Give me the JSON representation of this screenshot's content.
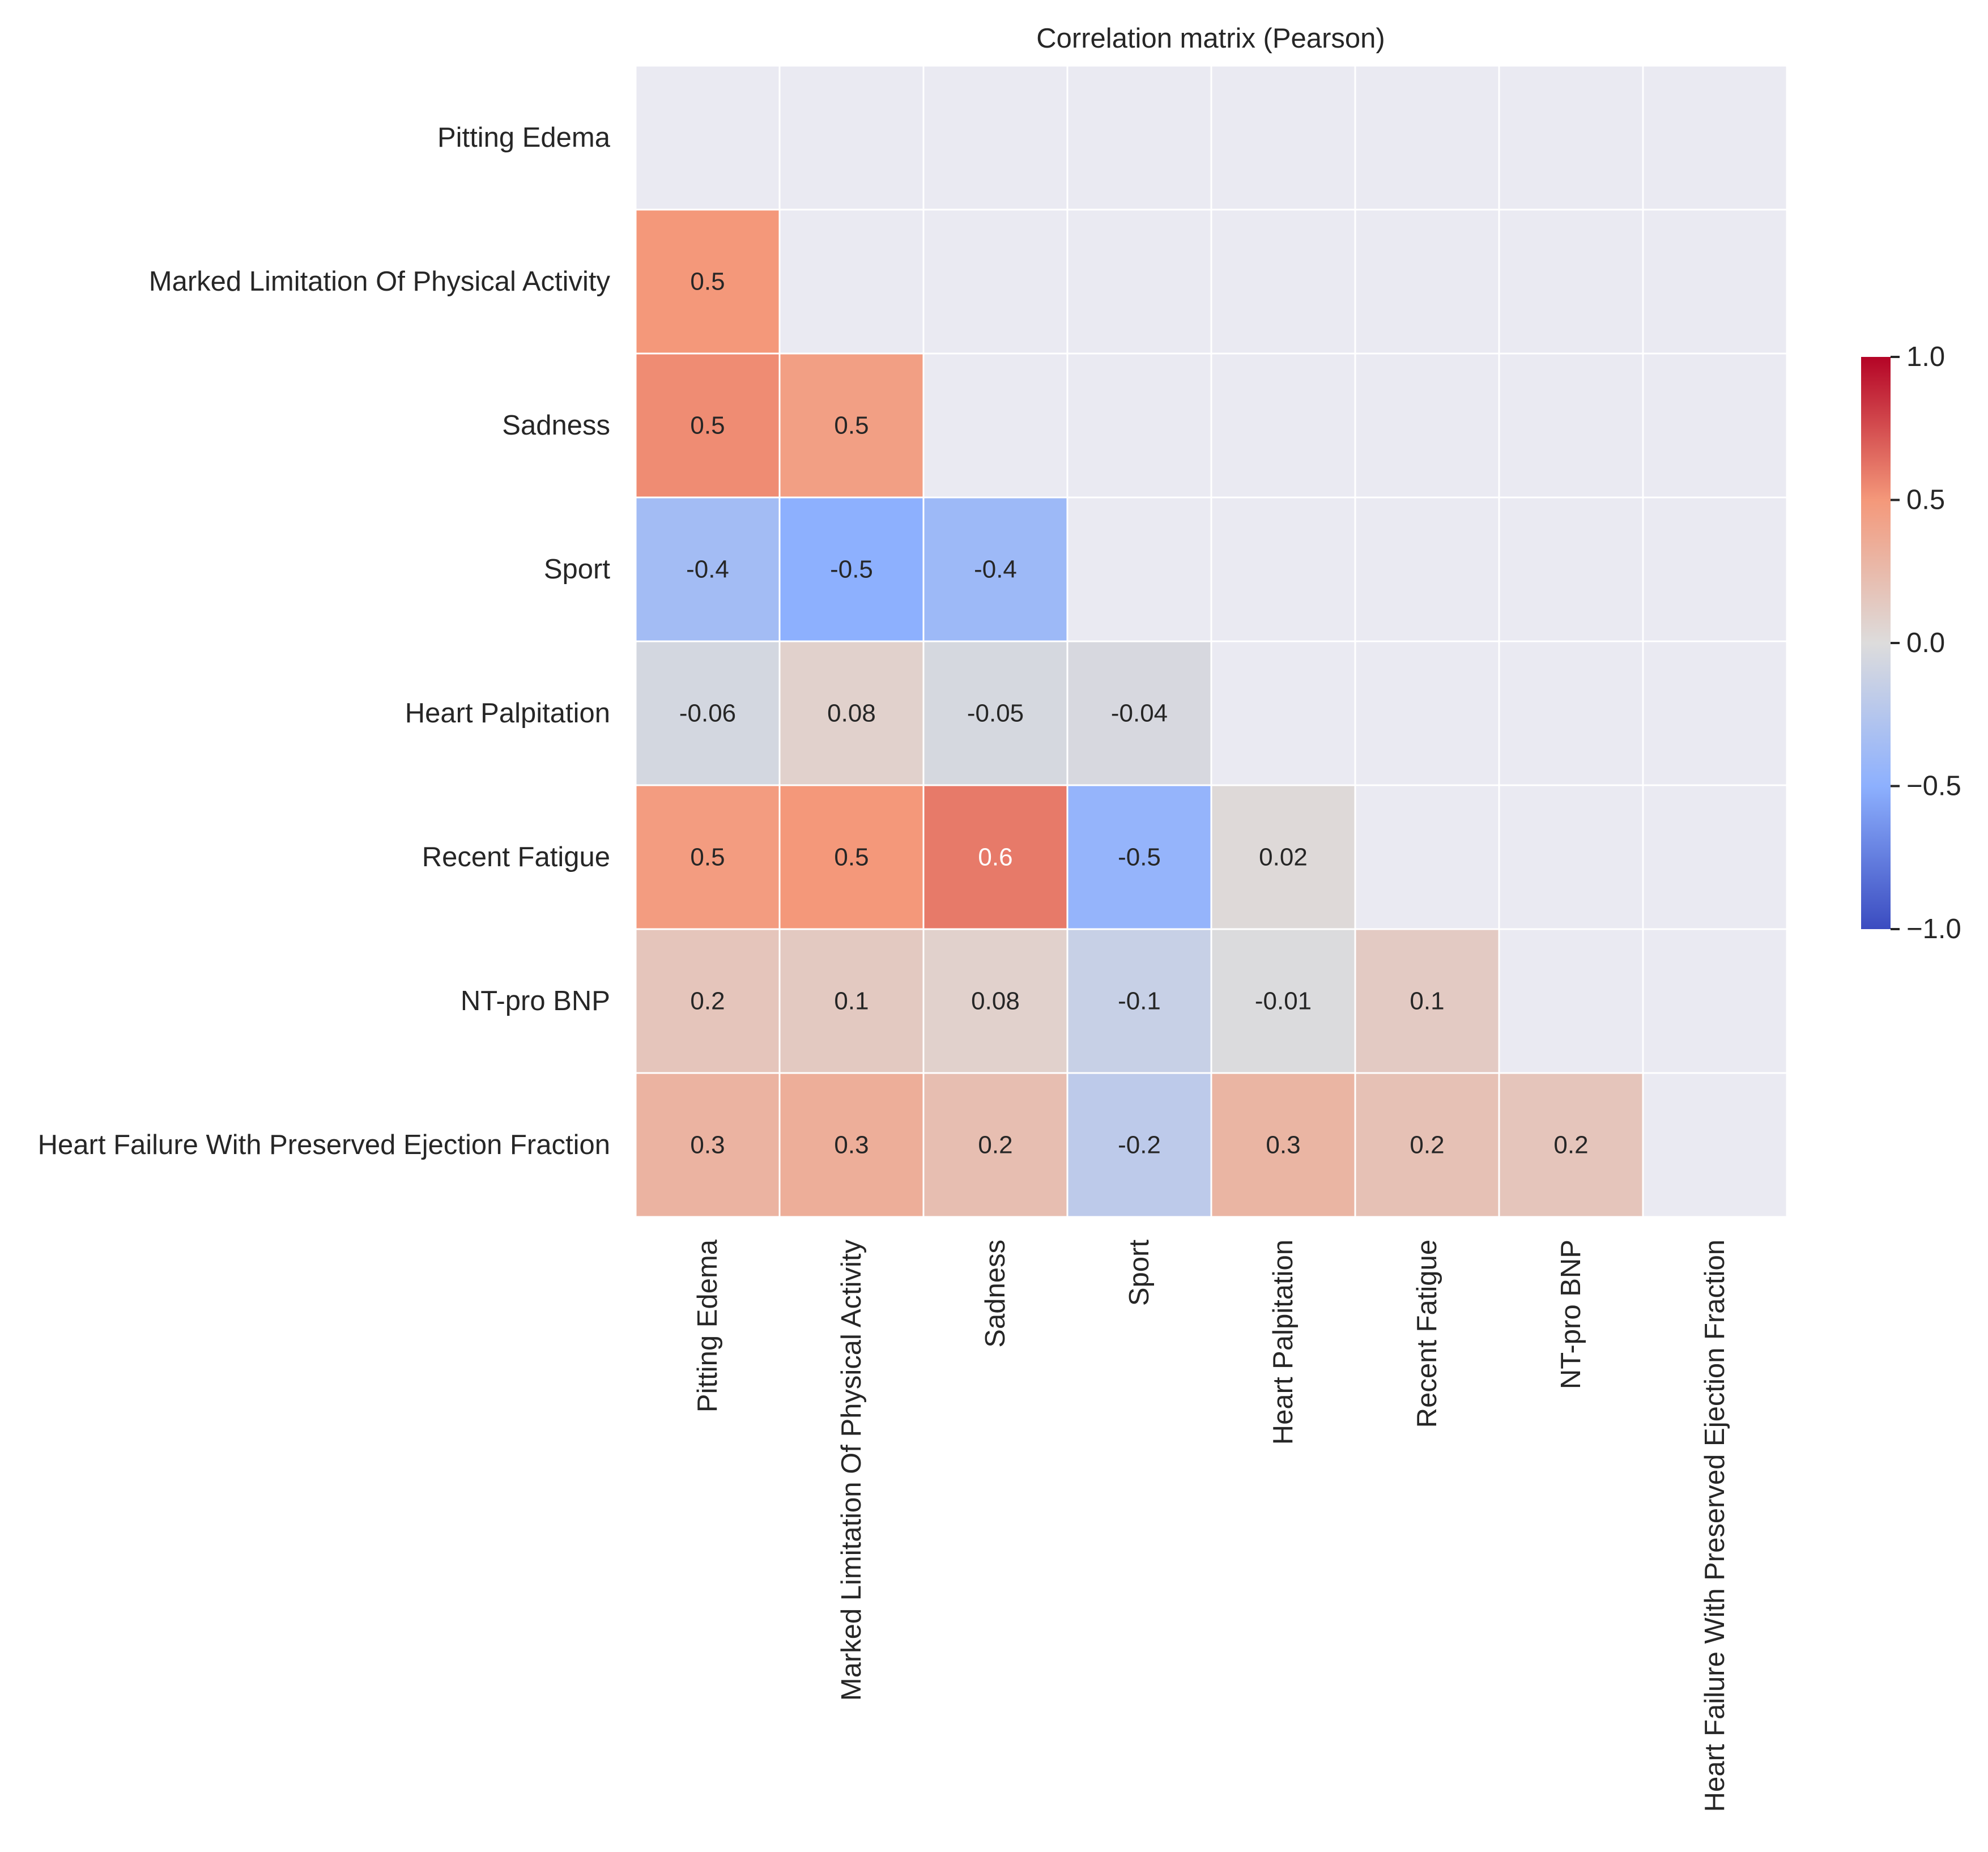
{
  "chart_data": {
    "type": "heatmap",
    "title": "Correlation matrix (Pearson)",
    "xlabel": "",
    "ylabel": "",
    "labels": [
      "Pitting Edema",
      "Marked Limitation Of Physical Activity",
      "Sadness",
      "Sport",
      "Heart Palpitation",
      "Recent Fatigue",
      "NT-pro BNP",
      "Heart Failure With Preserved Ejection Fraction"
    ],
    "mask": "upper-triangle-including-diagonal",
    "values": [
      [
        null,
        null,
        null,
        null,
        null,
        null,
        null,
        null
      ],
      [
        0.5,
        null,
        null,
        null,
        null,
        null,
        null,
        null
      ],
      [
        0.54,
        0.45,
        null,
        null,
        null,
        null,
        null,
        null
      ],
      [
        -0.36,
        -0.5,
        -0.4,
        null,
        null,
        null,
        null,
        null
      ],
      [
        -0.06,
        0.08,
        -0.05,
        -0.04,
        null,
        null,
        null,
        null
      ],
      [
        0.47,
        0.5,
        0.6,
        -0.45,
        0.02,
        null,
        null,
        null
      ],
      [
        0.17,
        0.14,
        0.08,
        -0.14,
        -0.01,
        0.13,
        null,
        null
      ],
      [
        0.3,
        0.34,
        0.22,
        -0.2,
        0.29,
        0.2,
        0.17,
        null
      ]
    ],
    "cell_labels": [
      [
        null,
        null,
        null,
        null,
        null,
        null,
        null,
        null
      ],
      [
        "0.5",
        null,
        null,
        null,
        null,
        null,
        null,
        null
      ],
      [
        "0.5",
        "0.5",
        null,
        null,
        null,
        null,
        null,
        null
      ],
      [
        "-0.4",
        "-0.5",
        "-0.4",
        null,
        null,
        null,
        null,
        null
      ],
      [
        "-0.06",
        "0.08",
        "-0.05",
        "-0.04",
        null,
        null,
        null,
        null
      ],
      [
        "0.5",
        "0.5",
        "0.6",
        "-0.5",
        "0.02",
        null,
        null,
        null
      ],
      [
        "0.2",
        "0.1",
        "0.08",
        "-0.1",
        "-0.01",
        "0.1",
        null,
        null
      ],
      [
        "0.3",
        "0.3",
        "0.2",
        "-0.2",
        "0.3",
        "0.2",
        "0.2",
        null
      ]
    ],
    "colormap": "coolwarm",
    "colormap_stops": [
      "#3b4cc0",
      "#8db0fe",
      "#dddcdc",
      "#f4987a",
      "#b40426"
    ],
    "vmin": -1.0,
    "vmax": 1.0,
    "colorbar_ticks": [
      1.0,
      0.5,
      0.0,
      -0.5,
      -1.0
    ],
    "colorbar_tick_labels": [
      "1.0",
      "0.5",
      "0.0",
      "−0.5",
      "−1.0"
    ],
    "background_color": "#eaeaf2",
    "grid_line_color": "#ffffff"
  }
}
